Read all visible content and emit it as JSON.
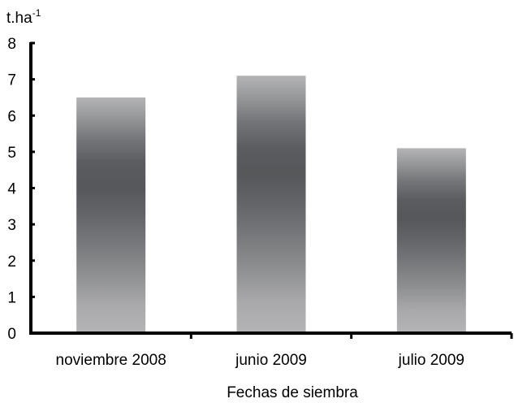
{
  "chart_data": {
    "type": "bar",
    "categories": [
      "noviembre 2008",
      "junio 2009",
      "julio 2009"
    ],
    "series": [
      {
        "values": [
          6.5,
          7.1,
          5.1
        ]
      }
    ],
    "title": "",
    "xlabel": "Fechas de siembra",
    "ylabel": "",
    "yunit": {
      "base": "t.ha",
      "superscript": "-1"
    },
    "ylim": [
      0,
      8
    ],
    "yticks": [
      0,
      1,
      2,
      3,
      4,
      5,
      6,
      7,
      8
    ],
    "grid": false,
    "legend": "none",
    "colors": {
      "bar_light": "#b4b4b6",
      "bar_dark": "#55575a",
      "axis": "#000000"
    }
  }
}
